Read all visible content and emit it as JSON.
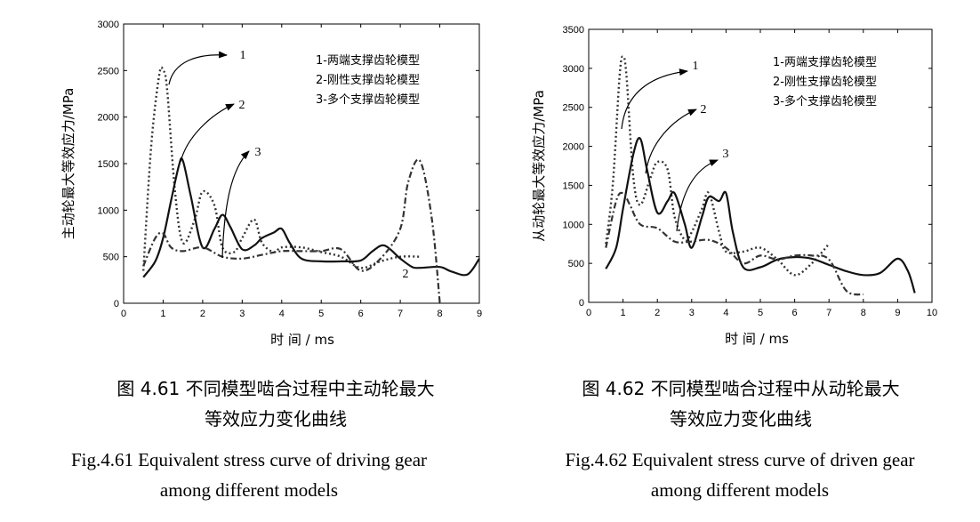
{
  "chart_data": [
    {
      "type": "line",
      "ylabel": "主动轮最大等效应力/MPa",
      "xlabel": "时 间 /  ms",
      "xlim": [
        0,
        9
      ],
      "ylim": [
        0,
        3000
      ],
      "xticks": [
        "0",
        "1",
        "2",
        "3",
        "4",
        "5",
        "6",
        "7",
        "8",
        "9"
      ],
      "yticks": [
        "0",
        "500",
        "1000",
        "1500",
        "2000",
        "2500",
        "3000"
      ],
      "legend": [
        "1-两端支撑齿轮模型",
        "2-刚性支撑齿轮模型",
        "3-多个支撑齿轮模型"
      ],
      "annotations": [
        "1",
        "2",
        "3",
        "2"
      ],
      "series": [
        {
          "name": "1-两端支撑齿轮模型",
          "style": "dotted",
          "x": [
            0.5,
            0.7,
            0.9,
            1.0,
            1.1,
            1.3,
            1.5,
            1.8,
            2.0,
            2.3,
            2.5,
            2.8,
            3.0,
            3.3,
            3.5,
            3.8,
            4.0,
            4.5,
            5.0,
            5.5,
            6.0,
            6.5,
            7.0,
            7.5
          ],
          "y": [
            350,
            1700,
            2450,
            2500,
            2300,
            1200,
            650,
            900,
            1200,
            1050,
            600,
            550,
            700,
            900,
            650,
            550,
            600,
            600,
            550,
            500,
            380,
            450,
            500,
            500
          ]
        },
        {
          "name": "2-刚性支撑齿轮模型",
          "style": "solid",
          "x": [
            0.5,
            0.8,
            1.0,
            1.2,
            1.4,
            1.5,
            1.7,
            2.0,
            2.3,
            2.5,
            2.7,
            3.0,
            3.3,
            3.5,
            3.8,
            4.0,
            4.2,
            4.5,
            5.0,
            5.5,
            6.0,
            6.3,
            6.6,
            7.0,
            7.3,
            7.5,
            8.0,
            8.3,
            8.7,
            9.0
          ],
          "y": [
            280,
            450,
            700,
            1100,
            1480,
            1530,
            1150,
            600,
            800,
            950,
            820,
            580,
            620,
            700,
            760,
            800,
            650,
            480,
            450,
            450,
            460,
            560,
            620,
            480,
            390,
            380,
            390,
            340,
            310,
            480
          ]
        },
        {
          "name": "3-多个支撑齿轮模型",
          "style": "dashdot",
          "x": [
            0.5,
            0.8,
            1.0,
            1.2,
            1.5,
            2.0,
            2.5,
            3.0,
            3.5,
            4.0,
            4.5,
            5.0,
            5.5,
            6.0,
            6.5,
            7.0,
            7.2,
            7.5,
            7.8,
            8.0
          ],
          "y": [
            400,
            700,
            750,
            600,
            560,
            600,
            500,
            480,
            520,
            560,
            560,
            560,
            580,
            350,
            480,
            800,
            1300,
            1530,
            900,
            0
          ]
        }
      ]
    },
    {
      "type": "line",
      "ylabel": "从动轮最大等效应力/MPa",
      "xlabel": "时 间 /  ms",
      "xlim": [
        0,
        10
      ],
      "ylim": [
        0,
        3500
      ],
      "xticks": [
        "0",
        "1",
        "2",
        "3",
        "4",
        "5",
        "6",
        "7",
        "8",
        "9",
        "10"
      ],
      "yticks": [
        "0",
        "500",
        "1000",
        "1500",
        "2000",
        "2500",
        "3000",
        "3500"
      ],
      "legend": [
        "1-两端支撑齿轮模型",
        "2-刚性支撑齿轮模型",
        "3-多个支撑齿轮模型"
      ],
      "annotations": [
        "1",
        "2",
        "3"
      ],
      "series": [
        {
          "name": "1-两端支撑齿轮模型",
          "style": "dotted",
          "x": [
            0.5,
            0.7,
            0.9,
            1.0,
            1.1,
            1.3,
            1.5,
            1.8,
            2.0,
            2.3,
            2.5,
            2.8,
            3.0,
            3.3,
            3.5,
            3.8,
            4.0,
            4.5,
            5.0,
            5.5,
            6.0,
            6.5,
            7.0
          ],
          "y": [
            750,
            1500,
            2900,
            3150,
            2900,
            1600,
            1250,
            1600,
            1800,
            1700,
            1100,
            800,
            900,
            1200,
            1400,
            900,
            650,
            650,
            700,
            550,
            350,
            500,
            750
          ]
        },
        {
          "name": "2-刚性支撑齿轮模型",
          "style": "solid",
          "x": [
            0.5,
            0.8,
            1.0,
            1.3,
            1.5,
            1.7,
            2.0,
            2.3,
            2.5,
            2.8,
            3.0,
            3.3,
            3.5,
            3.8,
            4.0,
            4.2,
            4.5,
            5.0,
            5.5,
            6.0,
            6.5,
            7.0,
            7.5,
            8.0,
            8.5,
            9.0,
            9.3,
            9.5
          ],
          "y": [
            430,
            700,
            1200,
            1900,
            2100,
            1700,
            1150,
            1300,
            1400,
            1000,
            700,
            1100,
            1350,
            1300,
            1400,
            900,
            450,
            450,
            550,
            580,
            560,
            480,
            400,
            350,
            380,
            560,
            400,
            120
          ]
        },
        {
          "name": "3-多个支撑齿轮模型",
          "style": "dashdot",
          "x": [
            0.5,
            0.8,
            1.0,
            1.2,
            1.5,
            2.0,
            2.5,
            3.0,
            3.5,
            4.0,
            4.5,
            5.0,
            5.5,
            6.0,
            6.5,
            7.0,
            7.5,
            8.0
          ],
          "y": [
            700,
            1300,
            1400,
            1250,
            1000,
            950,
            780,
            780,
            800,
            700,
            500,
            600,
            550,
            600,
            600,
            550,
            150,
            100
          ]
        }
      ]
    }
  ],
  "captions": [
    {
      "cn_line1": "图 4.61  不同模型啮合过程中主动轮最大",
      "cn_line2": "等效应力变化曲线",
      "en_line1": "Fig.4.61  Equivalent stress curve of driving gear",
      "en_line2": "among different models"
    },
    {
      "cn_line1": "图 4.62  不同模型啮合过程中从动轮最大",
      "cn_line2": "等效应力变化曲线",
      "en_line1": "Fig.4.62 Equivalent stress curve of driven gear",
      "en_line2": "among different models"
    }
  ]
}
